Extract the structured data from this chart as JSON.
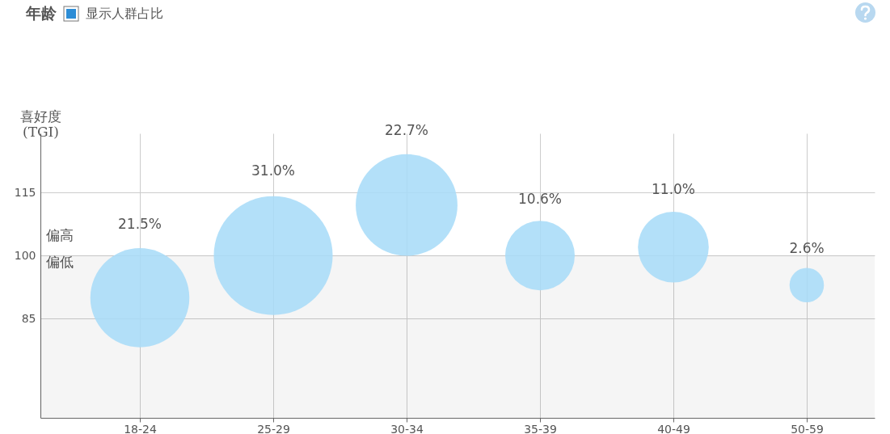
{
  "chart_data": {
    "type": "bubble",
    "title": "年龄",
    "subtitle": "显示人群占比",
    "ylabel": "喜好度 (TGI)",
    "categories": [
      "18-24",
      "25-29",
      "30-34",
      "35-39",
      "40-49",
      "50-59"
    ],
    "series": [
      {
        "color": "#a9dcf8",
        "values": [
          90,
          100,
          112,
          100,
          102,
          93
        ],
        "sizes": [
          21.5,
          31.0,
          22.7,
          10.6,
          11.0,
          2.6
        ],
        "value_labels": [
          "21.5%",
          "31.0%",
          "22.7%",
          "10.6%",
          "11.0%",
          "2.6%"
        ]
      }
    ],
    "ylim": [
      61.5,
      129
    ],
    "yticks": [
      85,
      100,
      115
    ],
    "grid": true,
    "bands": [
      {
        "axis": "y",
        "from": 61.5,
        "to": 100,
        "color": "#f5f5f5"
      }
    ],
    "annotations": [
      "偏高",
      "偏低"
    ]
  }
}
